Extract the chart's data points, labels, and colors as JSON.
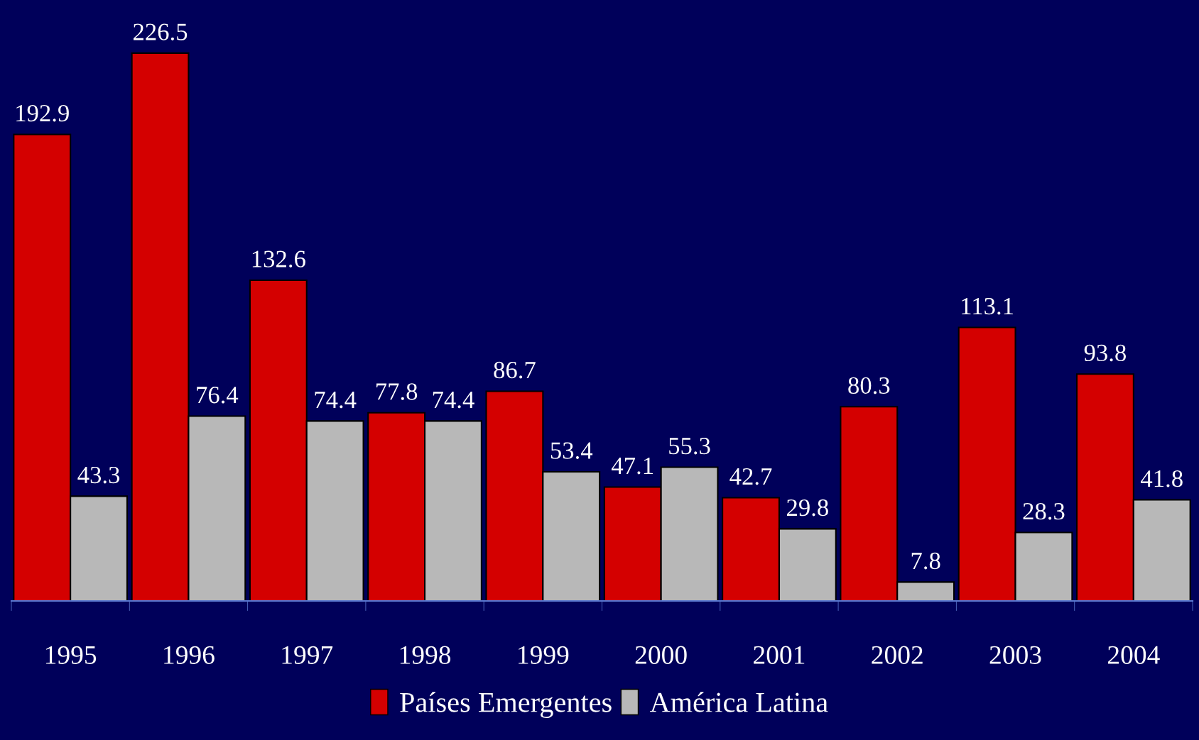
{
  "chart_data": {
    "type": "bar",
    "categories": [
      "1995",
      "1996",
      "1997",
      "1998",
      "1999",
      "2000",
      "2001",
      "2002",
      "2003",
      "2004"
    ],
    "series": [
      {
        "name": "Países Emergentes",
        "color": "#d40000",
        "values": [
          192.9,
          226.5,
          132.6,
          77.8,
          86.7,
          47.1,
          42.7,
          80.3,
          113.1,
          93.8
        ]
      },
      {
        "name": "América Latina",
        "color": "#b8b8b8",
        "values": [
          43.3,
          76.4,
          74.4,
          74.4,
          53.4,
          55.3,
          29.8,
          7.8,
          28.3,
          41.8
        ]
      }
    ],
    "data_labels": true,
    "legend": "bottom",
    "grid": false
  }
}
